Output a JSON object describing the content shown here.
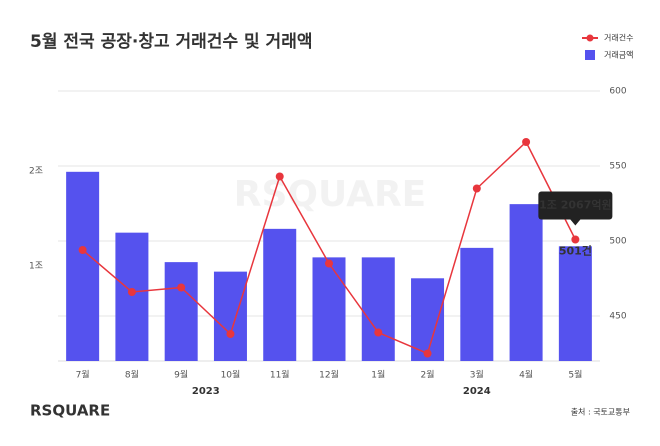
{
  "chart_data": {
    "type": "bar-line",
    "title": "5월 전국 공장·창고 거래건수 및 거래액",
    "categories": [
      "7월",
      "8월",
      "9월",
      "10월",
      "11월",
      "12월",
      "1월",
      "2월",
      "3월",
      "4월",
      "5월"
    ],
    "x_groups": [
      {
        "label": "2023",
        "count": 6
      },
      {
        "label": "2024",
        "count": 5
      }
    ],
    "series": [
      {
        "name": "거래건수",
        "type": "line",
        "axis": "y2",
        "color": "#e8363d",
        "values": [
          494,
          466,
          469,
          438,
          543,
          485,
          439,
          425,
          535,
          566,
          501
        ],
        "value_labels": [
          null,
          null,
          null,
          null,
          null,
          null,
          null,
          null,
          null,
          null,
          "501건"
        ]
      },
      {
        "name": "거래금액",
        "type": "bar",
        "axis": "y",
        "color": "#5552ee",
        "values": [
          1.99,
          1.35,
          1.04,
          0.94,
          1.39,
          1.09,
          1.09,
          0.87,
          1.19,
          1.65,
          1.2067
        ],
        "value_labels": [
          null,
          null,
          null,
          null,
          null,
          null,
          null,
          null,
          null,
          null,
          "1조 2067억원"
        ]
      }
    ],
    "ylim": [
      0,
      2.84
    ],
    "yticks": [
      {
        "value": 1,
        "label": "1조"
      },
      {
        "value": 2,
        "label": "2조"
      }
    ],
    "y2lim": [
      420,
      600
    ],
    "y2ticks": [
      450,
      500,
      550,
      600
    ],
    "grid": true,
    "legend": "top-right",
    "watermark": "RSQUARE",
    "logo": "RSQUARE",
    "source": "출처 : 국토교통부"
  }
}
